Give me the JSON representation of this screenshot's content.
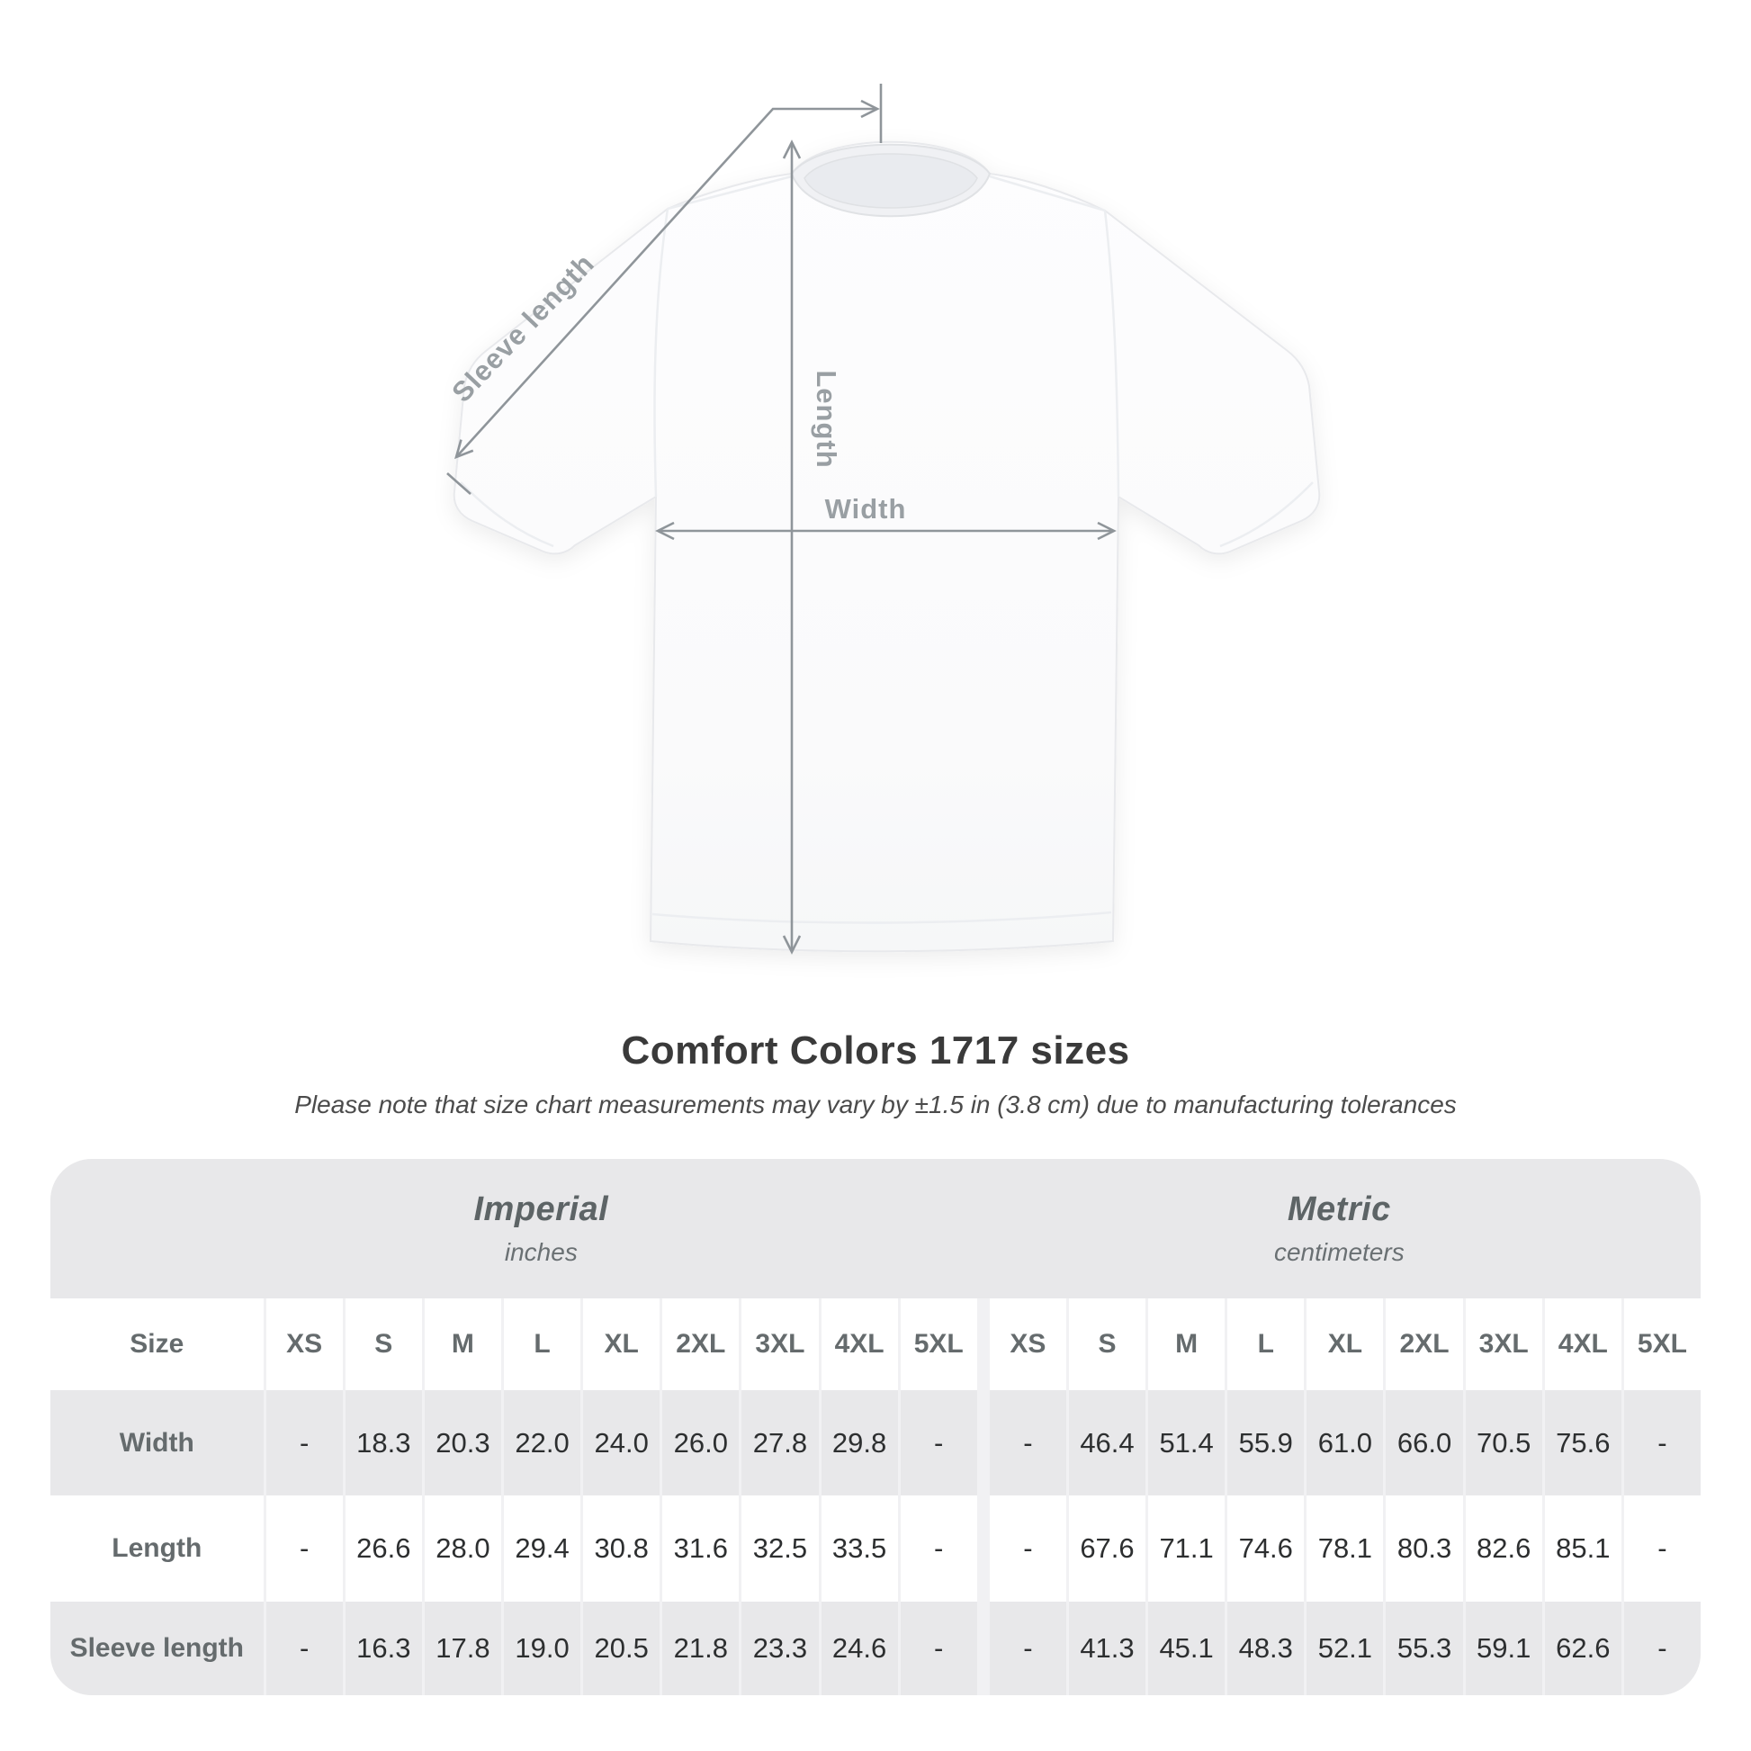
{
  "diagram": {
    "labels": {
      "sleeve": "Sleeve length",
      "length": "Length",
      "width": "Width"
    },
    "line_color": "#8f959a",
    "label_color": "#999fa3"
  },
  "title": "Comfort Colors 1717 sizes",
  "subtitle": "Please note that size chart measurements may vary by ±1.5 in (3.8 cm) due to manufacturing tolerances",
  "chart_data": {
    "type": "table",
    "title": "Comfort Colors 1717 sizes",
    "groups": [
      {
        "label": "Imperial",
        "sublabel": "inches"
      },
      {
        "label": "Metric",
        "sublabel": "centimeters"
      }
    ],
    "size_header": "Size",
    "sizes": [
      "XS",
      "S",
      "M",
      "L",
      "XL",
      "2XL",
      "3XL",
      "4XL",
      "5XL"
    ],
    "rows": [
      {
        "label": "Width",
        "imperial": [
          "-",
          "18.3",
          "20.3",
          "22.0",
          "24.0",
          "26.0",
          "27.8",
          "29.8",
          "-"
        ],
        "metric": [
          "-",
          "46.4",
          "51.4",
          "55.9",
          "61.0",
          "66.0",
          "70.5",
          "75.6",
          "-"
        ]
      },
      {
        "label": "Length",
        "imperial": [
          "-",
          "26.6",
          "28.0",
          "29.4",
          "30.8",
          "31.6",
          "32.5",
          "33.5",
          "-"
        ],
        "metric": [
          "-",
          "67.6",
          "71.1",
          "74.6",
          "78.1",
          "80.3",
          "82.6",
          "85.1",
          "-"
        ]
      },
      {
        "label": "Sleeve length",
        "imperial": [
          "-",
          "16.3",
          "17.8",
          "19.0",
          "20.5",
          "21.8",
          "23.3",
          "24.6",
          "-"
        ],
        "metric": [
          "-",
          "41.3",
          "45.1",
          "48.3",
          "52.1",
          "55.3",
          "59.1",
          "62.6",
          "-"
        ]
      }
    ]
  },
  "colors": {
    "card_bg": "#e8e8ea",
    "row_alt": "#ffffff",
    "separator": "#f1f1f3",
    "group_header_text": "#5d6466",
    "label_text": "#656b6d",
    "value_text": "#2d2f30",
    "title_text": "#3a3a3a",
    "subtitle_text": "#4b4b4b"
  }
}
